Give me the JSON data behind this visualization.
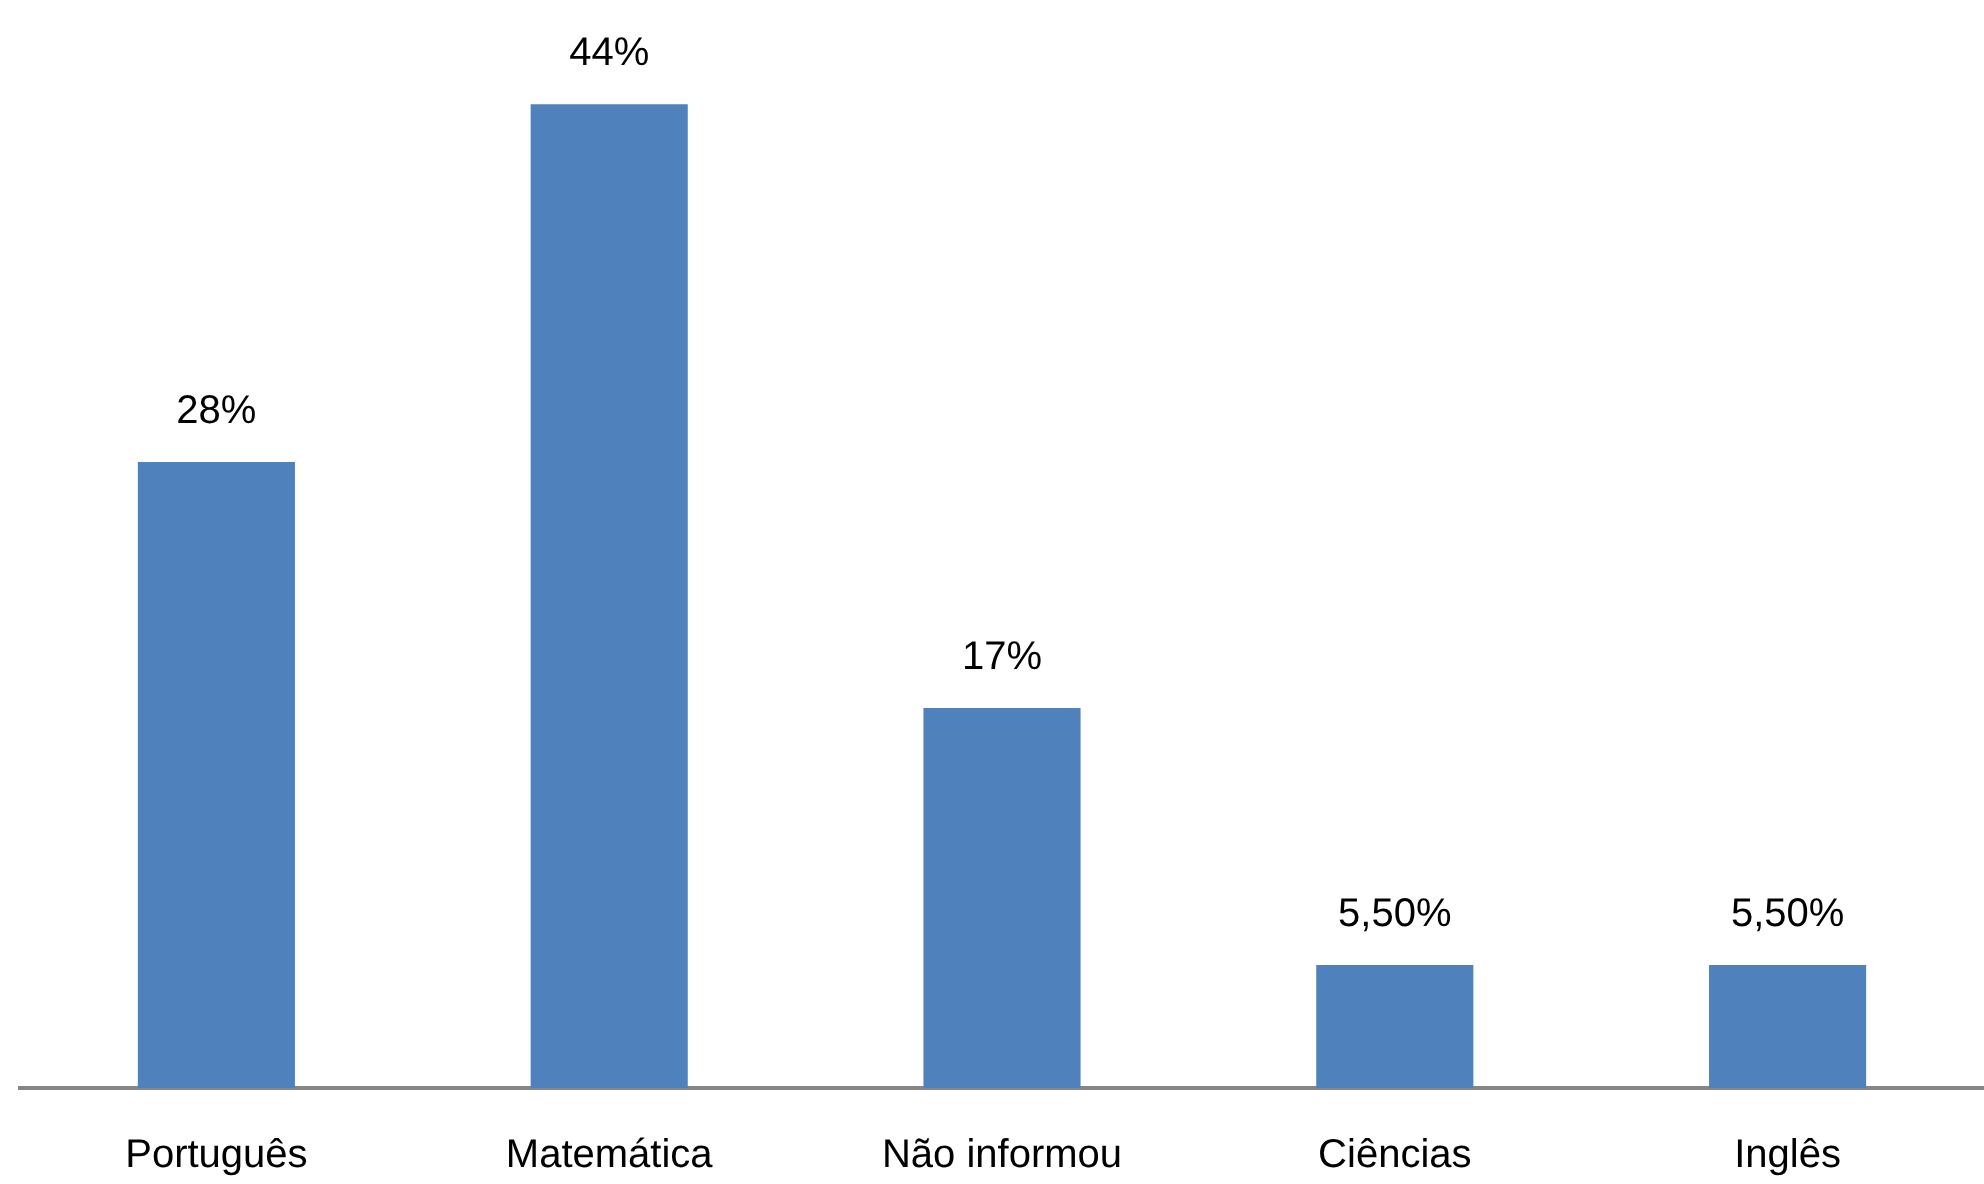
{
  "chart_data": {
    "type": "bar",
    "categories": [
      "Português",
      "Matemática",
      "Não informou",
      "Ciências",
      "Inglês"
    ],
    "values": [
      28,
      44,
      17,
      5.5,
      5.5
    ],
    "value_labels": [
      "28%",
      "44%",
      "17%",
      "5,50%",
      "5,50%"
    ],
    "color": "#4f81bd",
    "tick_labels": "x"
  }
}
